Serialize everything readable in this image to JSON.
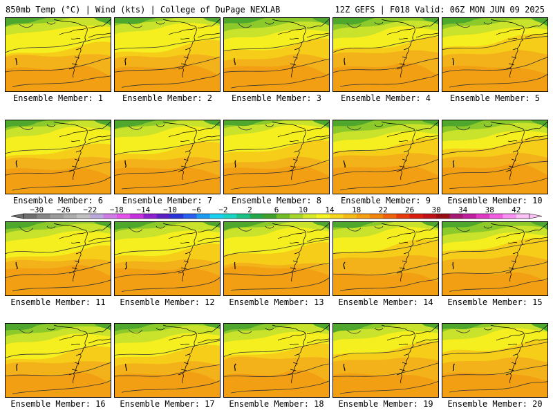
{
  "header": {
    "left": "850mb Temp (°C) | Wind (kts) | College of DuPage NEXLAB",
    "right": "12Z GEFS | F018 Valid: 06Z MON JUN 09 2025"
  },
  "members": [
    {
      "caption": "Ensemble Member: 1"
    },
    {
      "caption": "Ensemble Member: 2"
    },
    {
      "caption": "Ensemble Member: 3"
    },
    {
      "caption": "Ensemble Member: 4"
    },
    {
      "caption": "Ensemble Member: 5"
    },
    {
      "caption": "Ensemble Member: 6"
    },
    {
      "caption": "Ensemble Member: 7"
    },
    {
      "caption": "Ensemble Member: 8"
    },
    {
      "caption": "Ensemble Member: 9"
    },
    {
      "caption": "Ensemble Member: 10"
    },
    {
      "caption": "Ensemble Member: 11"
    },
    {
      "caption": "Ensemble Member: 12"
    },
    {
      "caption": "Ensemble Member: 13"
    },
    {
      "caption": "Ensemble Member: 14"
    },
    {
      "caption": "Ensemble Member: 15"
    },
    {
      "caption": "Ensemble Member: 16"
    },
    {
      "caption": "Ensemble Member: 17"
    },
    {
      "caption": "Ensemble Member: 18"
    },
    {
      "caption": "Ensemble Member: 19"
    },
    {
      "caption": "Ensemble Member: 20"
    }
  ],
  "colorbar": {
    "labels": [
      "−30",
      "−26",
      "−22",
      "−18",
      "−14",
      "−10",
      "−6",
      "−2",
      "2",
      "6",
      "10",
      "14",
      "18",
      "22",
      "26",
      "30",
      "34",
      "38",
      "42"
    ],
    "colors": [
      "#6e6e6e",
      "#858585",
      "#9a9a9a",
      "#adadad",
      "#c0c0c0",
      "#b9a8d9",
      "#cf7ce6",
      "#e452ea",
      "#c82fde",
      "#8e1fd0",
      "#5a1fc4",
      "#2a35d8",
      "#2a5ef0",
      "#1a9af2",
      "#18d0f0",
      "#19d4c4",
      "#18c286",
      "#22a64a",
      "#3ea02a",
      "#72bc26",
      "#a6d52a",
      "#d6ea2a",
      "#f4f422",
      "#f6d61c",
      "#f5bb15",
      "#f4a010",
      "#f2840c",
      "#ef600a",
      "#e63a0c",
      "#d91c10",
      "#c01018",
      "#9a0c14",
      "#a51870",
      "#c21f9e",
      "#e038c4",
      "#f35ee0",
      "#f98ff0",
      "#fbc0f6"
    ]
  },
  "map_colors": {
    "green_dark": "#4fa82d",
    "green_mid": "#8cc92a",
    "yellow_green": "#c9e22b",
    "yellow": "#f5ef1f",
    "orange_light": "#f6cd18",
    "orange": "#f3b21a",
    "orange_dark": "#f19a12"
  }
}
